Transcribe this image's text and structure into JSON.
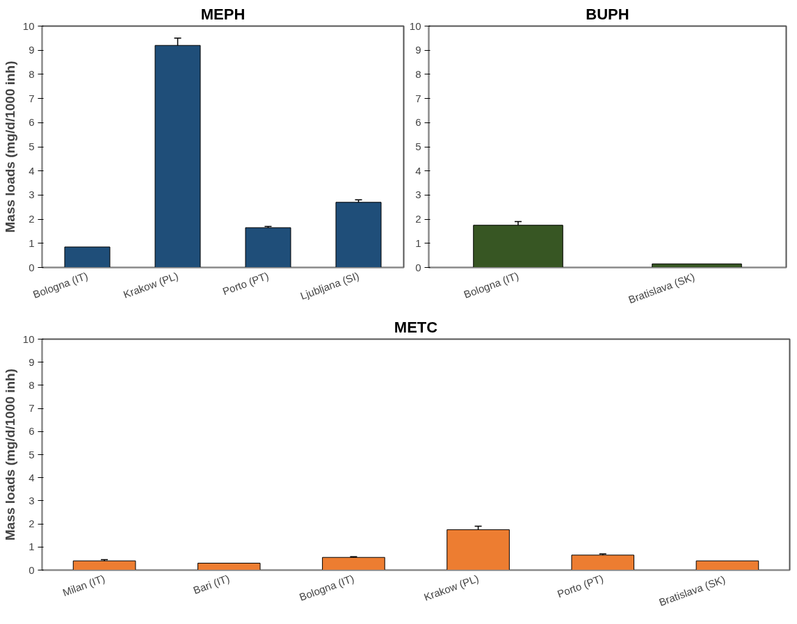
{
  "chart_data": [
    {
      "type": "bar",
      "title": "MEPH",
      "ylabel": "Mass loads (mg/d/1000 inh)",
      "categories": [
        "Bologna (IT)",
        "Krakow (PL)",
        "Porto (PT)",
        "Ljubljana (SI)"
      ],
      "values": [
        0.85,
        9.2,
        1.65,
        2.7
      ],
      "errors": [
        null,
        0.3,
        0.05,
        0.1
      ],
      "color": "#1f4e79",
      "ylim": [
        0,
        10
      ],
      "yticks": [
        0,
        1,
        2,
        3,
        4,
        5,
        6,
        7,
        8,
        9,
        10
      ],
      "grid": false
    },
    {
      "type": "bar",
      "title": "BUPH",
      "categories": [
        "Bologna (IT)",
        "Bratislava  (SK)"
      ],
      "values": [
        1.75,
        0.15
      ],
      "errors": [
        0.15,
        null
      ],
      "color": "#375623",
      "ylim": [
        0,
        10
      ],
      "yticks": [
        0,
        1,
        2,
        3,
        4,
        5,
        6,
        7,
        8,
        9,
        10
      ],
      "grid": false
    },
    {
      "type": "bar",
      "title": "METC",
      "ylabel": "Mass loads (mg/d/1000 inh)",
      "categories": [
        "Milan (IT)",
        "Bari (IT)",
        "Bologna (IT)",
        "Krakow (PL)",
        "Porto (PT)",
        "Bratislava  (SK)"
      ],
      "values": [
        0.4,
        0.3,
        0.55,
        1.75,
        0.65,
        0.4
      ],
      "errors": [
        0.05,
        null,
        0.03,
        0.15,
        0.05,
        null
      ],
      "color": "#ed7d31",
      "ylim": [
        0,
        10
      ],
      "yticks": [
        0,
        1,
        2,
        3,
        4,
        5,
        6,
        7,
        8,
        9,
        10
      ],
      "grid": false
    }
  ]
}
